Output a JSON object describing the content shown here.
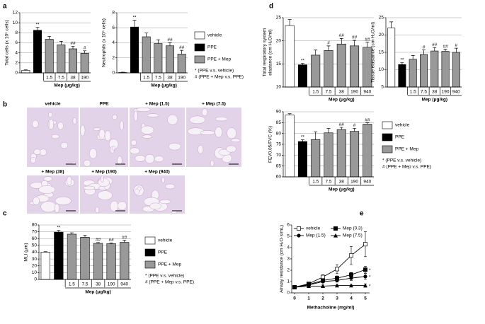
{
  "panel_labels": [
    "a",
    "b",
    "c",
    "d",
    "e"
  ],
  "legend": {
    "groups": [
      {
        "name": "vehicle",
        "color": "#ffffff"
      },
      {
        "name": "PPE",
        "color": "#000000"
      },
      {
        "name": "PPE + Mep",
        "color": "#999999"
      }
    ],
    "notes": [
      "* (PPE v.s. vehicle)",
      "# (PPE + Mep v.s. PPE)"
    ]
  },
  "histology": {
    "labels": [
      "vehicle",
      "PPE",
      "+ Mep (1.5)",
      "+ Mep (7.5)",
      "+ Mep (38)",
      "+ Mep (190)",
      "+ Mep (940)"
    ]
  },
  "chart_data": [
    {
      "type": "bar",
      "ylabel": "Total cells (x 10⁵ cells)",
      "xlabel": "Mep (μg/kg)",
      "categories": [
        null,
        null,
        "1.5",
        "7.5",
        "38",
        "190"
      ],
      "values": [
        0.5,
        8.5,
        6.7,
        5.6,
        4.8,
        3.9
      ],
      "errors": [
        0.1,
        0.6,
        0.6,
        0.7,
        0.5,
        0.5
      ],
      "colors": [
        "#ffffff",
        "#000000",
        "#999999",
        "#999999",
        "#999999",
        "#999999"
      ],
      "significance": [
        null,
        "**",
        null,
        null,
        "##",
        "#"
      ],
      "ylim": [
        0,
        12
      ],
      "yticks": [
        0,
        2,
        4,
        6,
        8,
        10,
        12
      ],
      "grid": true
    },
    {
      "type": "bar",
      "ylabel": "Neutrophils (x 10⁵ cells)",
      "xlabel": "Mep (μg/kg)",
      "categories": [
        null,
        null,
        "1.5",
        "7.5",
        "38",
        "190"
      ],
      "values": [
        0.05,
        6.1,
        4.8,
        3.9,
        3.6,
        2.5
      ],
      "errors": [
        0.05,
        0.9,
        0.5,
        0.5,
        0.4,
        0.5
      ],
      "colors": [
        "#ffffff",
        "#000000",
        "#999999",
        "#999999",
        "#999999",
        "#999999"
      ],
      "significance": [
        null,
        "**",
        null,
        null,
        "##",
        "##"
      ],
      "ylim": [
        0,
        8
      ],
      "yticks": [
        0,
        2,
        4,
        6,
        8
      ],
      "grid": true
    },
    {
      "type": "bar",
      "ylabel": "MLI (μm)",
      "xlabel": "Mep (μg/kg)",
      "categories": [
        null,
        null,
        "1.5",
        "7.5",
        "38",
        "190",
        "940"
      ],
      "values": [
        40,
        69.5,
        66.5,
        62,
        53,
        52.5,
        54.5
      ],
      "errors": [
        0.8,
        2.5,
        2,
        3,
        1.2,
        1.2,
        3
      ],
      "colors": [
        "#ffffff",
        "#000000",
        "#999999",
        "#999999",
        "#999999",
        "#999999",
        "#999999"
      ],
      "significance": [
        null,
        "**",
        null,
        null,
        "##",
        "##",
        "##"
      ],
      "ylim": [
        0,
        80
      ],
      "yticks": [
        0,
        10,
        20,
        30,
        40,
        50,
        60,
        70,
        80
      ],
      "grid": true
    },
    {
      "type": "bar",
      "ylabel": [
        "Total respiratory system",
        "elastance (cm H₂O/ml)"
      ],
      "xlabel": "Mep (μg/kg)",
      "categories": [
        null,
        null,
        "1.5",
        "7.5",
        "38",
        "190",
        "940"
      ],
      "values": [
        23.3,
        14.8,
        16.9,
        17.9,
        19.3,
        18.9,
        18.6
      ],
      "errors": [
        1.3,
        0.3,
        1.1,
        1.0,
        1.2,
        1.2,
        1.1
      ],
      "colors": [
        "#ffffff",
        "#000000",
        "#999999",
        "#999999",
        "#999999",
        "#999999",
        "#999999"
      ],
      "significance": [
        null,
        "**",
        null,
        "#",
        "##",
        "##",
        "##"
      ],
      "ylim": [
        10,
        25
      ],
      "yticks": [
        10,
        15,
        20,
        25
      ],
      "grid": true
    },
    {
      "type": "bar",
      "ylabel": "Tissue elastance (cm H₂O/ml)",
      "xlabel": "Mep (μg/kg)",
      "categories": [
        null,
        null,
        "1.5",
        "7.5",
        "38",
        "190",
        "940"
      ],
      "values": [
        22,
        11.5,
        13,
        14.4,
        15.4,
        15.3,
        15
      ],
      "errors": [
        1.8,
        0.5,
        1.1,
        1.3,
        1.0,
        0.6,
        1.2
      ],
      "colors": [
        "#ffffff",
        "#000000",
        "#999999",
        "#999999",
        "#999999",
        "#999999",
        "#999999"
      ],
      "significance": [
        null,
        "**",
        null,
        "#",
        "##",
        "##",
        "#"
      ],
      "ylim": [
        5,
        25
      ],
      "yticks": [
        5,
        10,
        15,
        20,
        25
      ],
      "grid": true
    },
    {
      "type": "bar",
      "ylabel": "FEV0.05/FVC (%)",
      "xlabel": "Mep (μg/kg)",
      "categories": [
        null,
        null,
        "1.5",
        "7.5",
        "38",
        "190",
        "940"
      ],
      "values": [
        88.5,
        76.3,
        77.2,
        80.3,
        81.8,
        81,
        84.3
      ],
      "errors": [
        0.6,
        0.8,
        3.5,
        2,
        1,
        1.4,
        0.6
      ],
      "colors": [
        "#ffffff",
        "#000000",
        "#999999",
        "#999999",
        "#999999",
        "#999999",
        "#999999"
      ],
      "significance": [
        null,
        "**",
        null,
        null,
        "##",
        "#",
        "##"
      ],
      "ylim": [
        60,
        90
      ],
      "yticks": [
        60,
        65,
        70,
        75,
        80,
        85,
        90
      ],
      "grid": true
    },
    {
      "type": "line",
      "ylabel": "Airway resistance (cm H₂O·s/mL)",
      "xlabel": "Methacholine (mg/ml)",
      "x": [
        0,
        1,
        2,
        3,
        4,
        5
      ],
      "xlim": [
        -0.2,
        5.3
      ],
      "xticks": [
        0,
        1,
        2,
        3,
        4,
        5
      ],
      "ylim": [
        0,
        6
      ],
      "yticks": [
        0,
        1,
        2,
        3,
        4,
        5,
        6
      ],
      "grid": false,
      "series": [
        {
          "name": "vehicle",
          "marker": "square-open",
          "color": "#000000",
          "values": [
            0.5,
            0.8,
            1.4,
            2.1,
            3.3,
            4.3
          ],
          "errors": [
            0.1,
            0.15,
            0.2,
            0.4,
            0.8,
            1.1
          ]
        },
        {
          "name": "Mep (0.3)",
          "marker": "square",
          "color": "#000000",
          "values": [
            0.5,
            0.75,
            1.1,
            1.3,
            1.6,
            2.05
          ],
          "errors": [
            0.1,
            0.1,
            0.15,
            0.2,
            0.2,
            0.3
          ],
          "significance": [
            null,
            null,
            null,
            null,
            null,
            "*"
          ]
        },
        {
          "name": "Mep (1.5)",
          "marker": "circle",
          "color": "#000000",
          "values": [
            0.5,
            0.7,
            1.0,
            1.1,
            1.3,
            1.45
          ],
          "errors": [
            0.05,
            0.1,
            0.1,
            0.15,
            0.2,
            0.25
          ],
          "significance": [
            null,
            null,
            null,
            null,
            null,
            "*"
          ]
        },
        {
          "name": "Mep (7.5)",
          "marker": "triangle",
          "color": "#000000",
          "values": [
            0.5,
            0.6,
            0.6,
            0.65,
            0.65,
            0.65
          ],
          "errors": [
            0.05,
            0.05,
            0.1,
            0.1,
            0.1,
            0.15
          ],
          "significance": [
            null,
            null,
            null,
            null,
            null,
            "*"
          ]
        }
      ]
    }
  ]
}
